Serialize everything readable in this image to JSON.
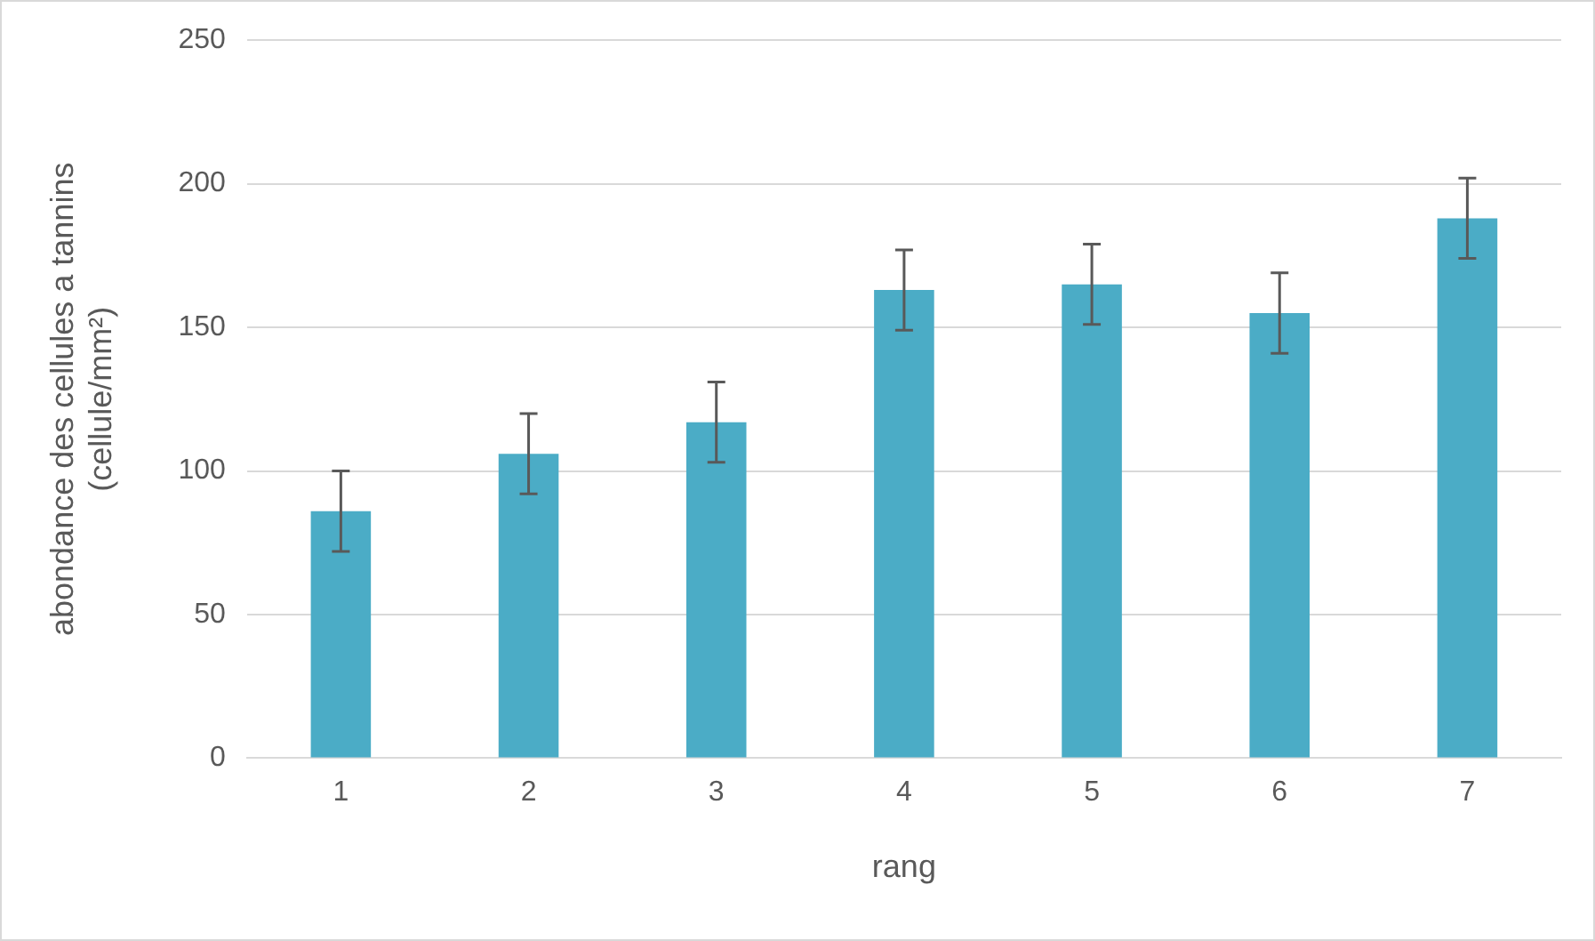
{
  "chart_data": {
    "type": "bar",
    "xlabel": "rang",
    "ylabel": "abondance des cellules a tannins\n(cellule/mm²)",
    "categories": [
      "1",
      "2",
      "3",
      "4",
      "5",
      "6",
      "7"
    ],
    "values": [
      86,
      106,
      117,
      163,
      165,
      155,
      188
    ],
    "errors": [
      14,
      14,
      14,
      14,
      14,
      14,
      14
    ],
    "color": "#4bacc6",
    "ylim": [
      0,
      250
    ],
    "yticks": [
      0,
      50,
      100,
      150,
      200,
      250
    ],
    "grid": "y",
    "legend": false
  }
}
